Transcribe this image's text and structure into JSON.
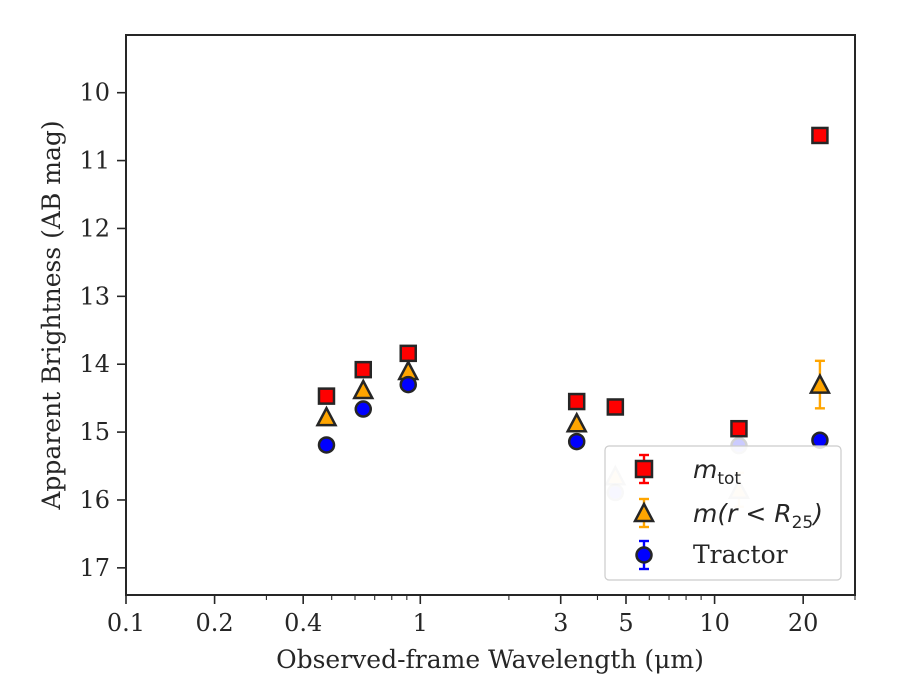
{
  "chart_data": {
    "type": "scatter",
    "xlabel": "Observed-frame Wavelength (μm)",
    "ylabel": "Apparent Brightness (AB mag)",
    "xscale": "log",
    "yaxis_inverted": true,
    "xlim": [
      0.1,
      30
    ],
    "ylim": [
      17.4,
      9.15
    ],
    "x_ticks": [
      0.1,
      0.2,
      0.4,
      1,
      3,
      5,
      10,
      20
    ],
    "x_tick_labels": [
      "0.1",
      "0.2",
      "0.4",
      "1",
      "3",
      "5",
      "10",
      "20"
    ],
    "y_ticks": [
      10,
      11,
      12,
      13,
      14,
      15,
      16,
      17
    ],
    "y_tick_labels": [
      "10",
      "11",
      "12",
      "13",
      "14",
      "15",
      "16",
      "17"
    ],
    "grid": false,
    "legend_position": "lower-right",
    "legend": {
      "mtot_base": "m",
      "mtot_sub": "tot",
      "mr_prefix": "m(r < R",
      "mr_sub": "25",
      "mr_suffix": ")",
      "tractor": "Tractor"
    },
    "series": [
      {
        "key": "mtot",
        "marker": "square",
        "color": "#ff0000",
        "edge": "#262626",
        "errcolor": "#ff0000",
        "points": [
          {
            "x": 0.48,
            "y": 14.47,
            "err": 0,
            "alpha": 1
          },
          {
            "x": 0.64,
            "y": 14.08,
            "err": 0,
            "alpha": 1
          },
          {
            "x": 0.91,
            "y": 13.84,
            "err": 0,
            "alpha": 1
          },
          {
            "x": 3.4,
            "y": 14.55,
            "err": 0,
            "alpha": 1
          },
          {
            "x": 4.6,
            "y": 14.63,
            "err": 0,
            "alpha": 1
          },
          {
            "x": 12.1,
            "y": 14.95,
            "err": 0,
            "alpha": 1
          },
          {
            "x": 22.8,
            "y": 10.63,
            "err": 0,
            "alpha": 1
          }
        ]
      },
      {
        "key": "mr25",
        "marker": "triangle",
        "color": "#ffa500",
        "edge": "#262626",
        "errcolor": "#ffa500",
        "points": [
          {
            "x": 0.48,
            "y": 14.78,
            "err": 0,
            "alpha": 1
          },
          {
            "x": 0.64,
            "y": 14.38,
            "err": 0,
            "alpha": 1
          },
          {
            "x": 0.91,
            "y": 14.1,
            "err": 0,
            "alpha": 1
          },
          {
            "x": 3.4,
            "y": 14.87,
            "err": 0,
            "alpha": 1
          },
          {
            "x": 4.6,
            "y": 15.65,
            "err": 0,
            "alpha": 0.2
          },
          {
            "x": 12.1,
            "y": 15.85,
            "err": 0.25,
            "alpha": 0.2
          },
          {
            "x": 22.8,
            "y": 14.3,
            "err": 0.35,
            "alpha": 1
          }
        ]
      },
      {
        "key": "tractor",
        "marker": "circle",
        "color": "#0000ff",
        "edge": "#262626",
        "errcolor": "#0000ff",
        "points": [
          {
            "x": 0.48,
            "y": 15.19,
            "err": 0,
            "alpha": 1
          },
          {
            "x": 0.64,
            "y": 14.66,
            "err": 0,
            "alpha": 1
          },
          {
            "x": 0.91,
            "y": 14.3,
            "err": 0,
            "alpha": 1
          },
          {
            "x": 3.4,
            "y": 15.14,
            "err": 0,
            "alpha": 1
          },
          {
            "x": 4.6,
            "y": 15.89,
            "err": 0,
            "alpha": 0.2
          },
          {
            "x": 12.1,
            "y": 15.2,
            "err": 0,
            "alpha": 0.2
          },
          {
            "x": 22.8,
            "y": 15.12,
            "err": 0,
            "alpha": 1
          }
        ]
      }
    ]
  }
}
